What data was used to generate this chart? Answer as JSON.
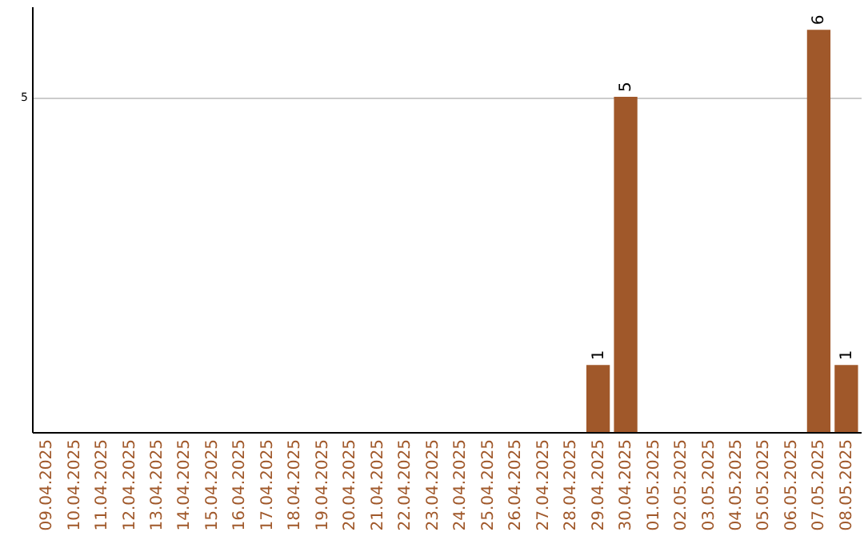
{
  "chart_data": {
    "type": "bar",
    "categories": [
      "09.04.2025",
      "10.04.2025",
      "11.04.2025",
      "12.04.2025",
      "13.04.2025",
      "14.04.2025",
      "15.04.2025",
      "16.04.2025",
      "17.04.2025",
      "18.04.2025",
      "19.04.2025",
      "20.04.2025",
      "21.04.2025",
      "22.04.2025",
      "23.04.2025",
      "24.04.2025",
      "25.04.2025",
      "26.04.2025",
      "27.04.2025",
      "28.04.2025",
      "29.04.2025",
      "30.04.2025",
      "01.05.2025",
      "02.05.2025",
      "03.05.2025",
      "04.05.2025",
      "05.05.2025",
      "06.05.2025",
      "07.05.2025",
      "08.05.2025"
    ],
    "values": [
      null,
      null,
      null,
      null,
      null,
      null,
      null,
      null,
      null,
      null,
      null,
      null,
      null,
      null,
      null,
      null,
      null,
      null,
      null,
      null,
      1,
      5,
      null,
      null,
      null,
      null,
      null,
      null,
      6,
      1
    ],
    "color": "#a0582a",
    "ylim": [
      0,
      6.35
    ],
    "yticks": [
      5
    ],
    "grid": "y",
    "data_labels": true
  }
}
